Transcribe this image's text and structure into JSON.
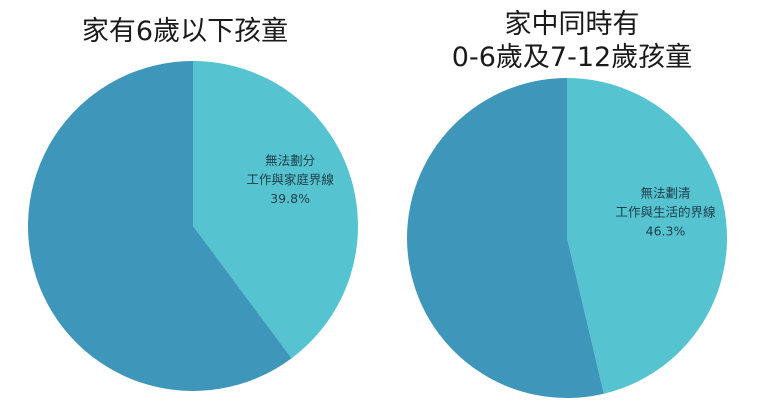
{
  "chart_data": [
    {
      "type": "pie",
      "title_lines": [
        "家有6歲以下孩童"
      ],
      "slices": [
        {
          "label_lines": [
            "無法劃分",
            "工作與家庭界線"
          ],
          "value": 39.8,
          "value_label": "39.8%",
          "color": "#56c4d0"
        },
        {
          "label_lines": [],
          "value": 60.2,
          "value_label": "",
          "color": "#3f96bb"
        }
      ]
    },
    {
      "type": "pie",
      "title_lines": [
        "家中同時有",
        "0-6歲及7-12歲孩童"
      ],
      "slices": [
        {
          "label_lines": [
            "無法劃清",
            "工作與生活的界線"
          ],
          "value": 46.3,
          "value_label": "46.3%",
          "color": "#56c4d0"
        },
        {
          "label_lines": [],
          "value": 53.7,
          "value_label": "",
          "color": "#3f96bb"
        }
      ]
    }
  ]
}
